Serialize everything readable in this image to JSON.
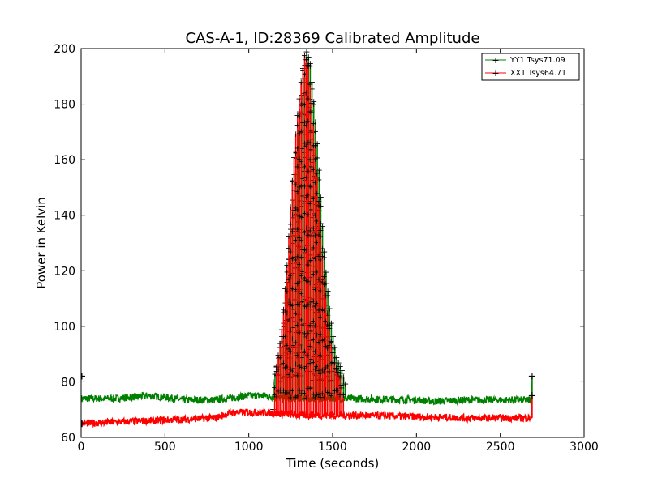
{
  "chart_data": {
    "type": "line",
    "title": "CAS-A-1, ID:28369 Calibrated Amplitude",
    "xlabel": "Time (seconds)",
    "ylabel": "Power in Kelvin",
    "xlim": [
      0,
      3000
    ],
    "ylim": [
      60,
      200
    ],
    "x_ticks": [
      0,
      500,
      1000,
      1500,
      2000,
      2500,
      3000
    ],
    "y_ticks": [
      60,
      80,
      100,
      120,
      140,
      160,
      180,
      200
    ],
    "x_tick_labels": [
      "0",
      "500",
      "1000",
      "1500",
      "2000",
      "2500",
      "3000"
    ],
    "y_tick_labels": [
      "60",
      "80",
      "100",
      "120",
      "140",
      "160",
      "180",
      "200"
    ],
    "grid": false,
    "legend_position": "top-right",
    "series": [
      {
        "name": "YY1 Tsys71.09",
        "color": "#008000",
        "marker": "+",
        "baseline_points": [
          [
            0,
            74
          ],
          [
            200,
            74
          ],
          [
            400,
            75
          ],
          [
            500,
            74.5
          ],
          [
            600,
            73.5
          ],
          [
            800,
            73.5
          ],
          [
            1000,
            75
          ],
          [
            1100,
            75
          ],
          [
            1200,
            74
          ],
          [
            1600,
            74
          ],
          [
            2000,
            73.5
          ],
          [
            2100,
            73
          ],
          [
            2300,
            73.5
          ],
          [
            2690,
            73.5
          ]
        ],
        "spike_envelope": [
          [
            1140,
            80
          ],
          [
            1170,
            88
          ],
          [
            1200,
            99
          ],
          [
            1230,
            120
          ],
          [
            1260,
            150
          ],
          [
            1290,
            173
          ],
          [
            1320,
            190
          ],
          [
            1340,
            199
          ],
          [
            1360,
            195
          ],
          [
            1380,
            182
          ],
          [
            1400,
            168
          ],
          [
            1420,
            150
          ],
          [
            1440,
            130
          ],
          [
            1460,
            116
          ],
          [
            1480,
            104
          ],
          [
            1500,
            95
          ],
          [
            1520,
            88
          ],
          [
            1550,
            84
          ],
          [
            1580,
            77
          ]
        ],
        "end_values": [
          82,
          82
        ]
      },
      {
        "name": "XX1 Tsys64.71",
        "color": "#ff0000",
        "marker": "+",
        "baseline_points": [
          [
            0,
            65
          ],
          [
            200,
            65.5
          ],
          [
            400,
            66
          ],
          [
            600,
            66.5
          ],
          [
            800,
            67
          ],
          [
            900,
            69
          ],
          [
            1000,
            69
          ],
          [
            1100,
            69
          ],
          [
            1300,
            68
          ],
          [
            1600,
            68
          ],
          [
            2000,
            67.5
          ],
          [
            2300,
            67
          ],
          [
            2690,
            67
          ]
        ],
        "spike_envelope": [
          [
            1150,
            70
          ],
          [
            1170,
            85
          ],
          [
            1200,
            97
          ],
          [
            1230,
            118
          ],
          [
            1260,
            148
          ],
          [
            1290,
            172
          ],
          [
            1320,
            189
          ],
          [
            1340,
            198
          ],
          [
            1360,
            194
          ],
          [
            1380,
            181
          ],
          [
            1400,
            167
          ],
          [
            1420,
            148
          ],
          [
            1440,
            128
          ],
          [
            1460,
            114
          ],
          [
            1480,
            102
          ],
          [
            1500,
            93
          ],
          [
            1520,
            86
          ],
          [
            1550,
            82
          ],
          [
            1580,
            72
          ]
        ],
        "end_values": [
          75,
          76
        ]
      }
    ]
  }
}
